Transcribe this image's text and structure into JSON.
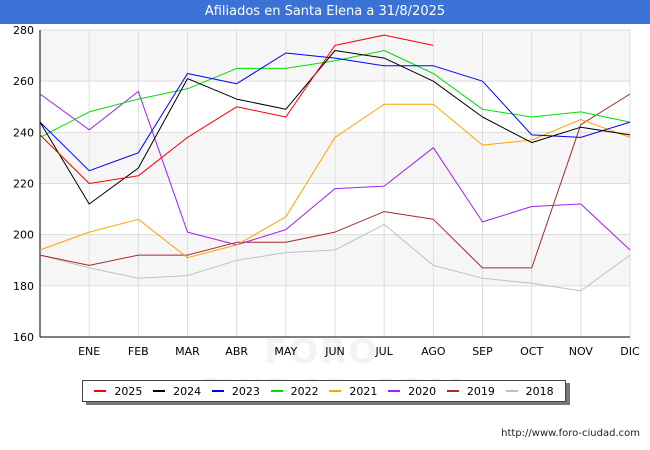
{
  "title": "Afiliados en Santa Elena a 31/8/2025",
  "source": "http://www.foro-ciudad.com",
  "watermark": "FORO-CIUDAD.COM",
  "chart_data": {
    "type": "line",
    "title": "Afiliados en Santa Elena a 31/8/2025",
    "xlabel": "",
    "ylabel": "",
    "categories": [
      "",
      "ENE",
      "FEB",
      "MAR",
      "ABR",
      "MAY",
      "JUN",
      "JUL",
      "AGO",
      "SEP",
      "OCT",
      "NOV",
      "DIC"
    ],
    "ylim": [
      160,
      280
    ],
    "yticks": [
      160,
      180,
      200,
      220,
      240,
      260,
      280
    ],
    "grid": true,
    "legend_position": "bottom",
    "series": [
      {
        "name": "2025",
        "color": "#ff0000",
        "values": [
          239,
          220,
          223,
          238,
          250,
          246,
          274,
          278,
          274,
          null,
          null,
          null,
          null
        ]
      },
      {
        "name": "2024",
        "color": "#000000",
        "values": [
          244,
          212,
          226,
          261,
          253,
          249,
          272,
          269,
          260,
          246,
          236,
          242,
          239
        ]
      },
      {
        "name": "2023",
        "color": "#0000ff",
        "values": [
          244,
          225,
          232,
          263,
          259,
          271,
          269,
          266,
          266,
          260,
          239,
          238,
          244
        ]
      },
      {
        "name": "2022",
        "color": "#00e000",
        "values": [
          238,
          248,
          253,
          257,
          265,
          265,
          268,
          272,
          263,
          249,
          246,
          248,
          244
        ]
      },
      {
        "name": "2021",
        "color": "#ffa500",
        "values": [
          194,
          201,
          206,
          191,
          196,
          207,
          238,
          251,
          251,
          235,
          237,
          245,
          238
        ]
      },
      {
        "name": "2020",
        "color": "#a020f0",
        "values": [
          255,
          241,
          256,
          201,
          196,
          202,
          218,
          219,
          234,
          205,
          211,
          212,
          194
        ]
      },
      {
        "name": "2019",
        "color": "#a52a2a",
        "values": [
          192,
          188,
          192,
          192,
          197,
          197,
          201,
          209,
          206,
          187,
          187,
          243,
          255
        ]
      },
      {
        "name": "2018",
        "color": "#c0c0c0",
        "values": [
          192,
          187,
          183,
          184,
          190,
          193,
          194,
          204,
          188,
          183,
          181,
          178,
          192
        ]
      }
    ]
  }
}
